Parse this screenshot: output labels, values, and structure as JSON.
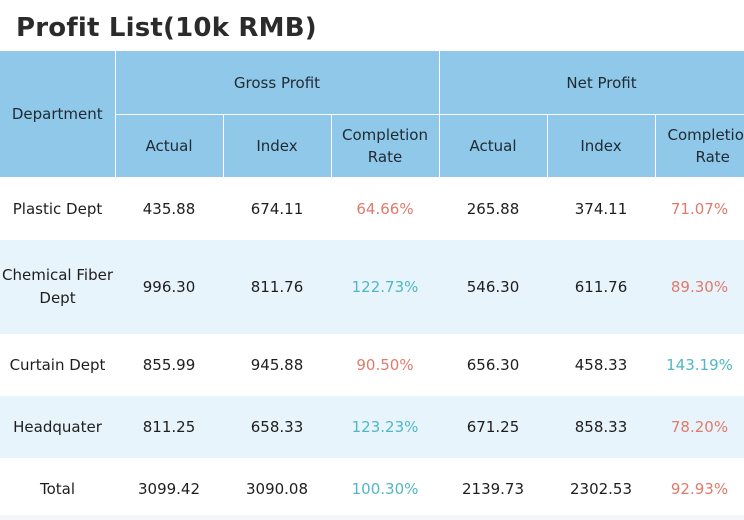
{
  "title": "Profit List(10k RMB)",
  "colors": {
    "header_bg": "#8fc8e8",
    "stripe_bg": "#e8f4fb",
    "rate_below_target": "#e07a6b",
    "rate_above_target": "#4fb8c4"
  },
  "header": {
    "department": "Department",
    "gross_profit": "Gross Profit",
    "net_profit": "Net Profit",
    "actual": "Actual",
    "index": "Index",
    "completion_rate_line1": "Completion",
    "completion_rate_line2": "Rate",
    "completion_rate_clipped_line1": "Completio",
    "completion_rate_clipped_line2": "Rate"
  },
  "rows": [
    {
      "department": "Plastic Dept",
      "gross_actual": "435.88",
      "gross_index": "674.11",
      "gross_rate": "64.66%",
      "net_actual": "265.88",
      "net_index": "374.11",
      "net_rate": "71.07%"
    },
    {
      "department_line1": "Chemical Fiber",
      "department_line2": "Dept",
      "gross_actual": "996.30",
      "gross_index": "811.76",
      "gross_rate": "122.73%",
      "net_actual": "546.30",
      "net_index": "611.76",
      "net_rate": "89.30%"
    },
    {
      "department": "Curtain Dept",
      "gross_actual": "855.99",
      "gross_index": "945.88",
      "gross_rate": "90.50%",
      "net_actual": "656.30",
      "net_index": "458.33",
      "net_rate": "143.19%"
    },
    {
      "department": "Headquater",
      "gross_actual": "811.25",
      "gross_index": "658.33",
      "gross_rate": "123.23%",
      "net_actual": "671.25",
      "net_index": "858.33",
      "net_rate": "78.20%"
    },
    {
      "department": "Total",
      "gross_actual": "3099.42",
      "gross_index": "3090.08",
      "gross_rate": "100.30%",
      "net_actual": "2139.73",
      "net_index": "2302.53",
      "net_rate": "92.93%"
    }
  ]
}
